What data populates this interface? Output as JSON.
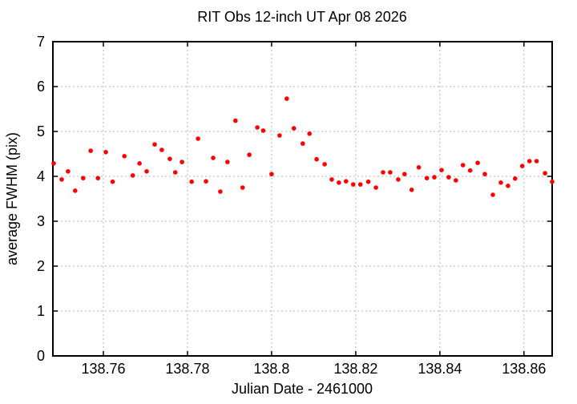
{
  "page": {
    "background": "#ffffff"
  },
  "chart_data": {
    "type": "scatter",
    "title": "RIT Obs 12-inch UT Apr 08 2026",
    "xlabel": "Julian Date - 2461000",
    "ylabel": "average FWHM (pix)",
    "xlim": [
      138.748,
      138.8667
    ],
    "ylim": [
      0,
      7
    ],
    "xticks": [
      138.76,
      138.78,
      138.8,
      138.82,
      138.84,
      138.86
    ],
    "xtick_labels": [
      "138.76",
      "138.78",
      "138.8",
      "138.82",
      "138.84",
      "138.86"
    ],
    "yticks": [
      0,
      1,
      2,
      3,
      4,
      5,
      6,
      7
    ],
    "ytick_labels": [
      "0",
      "1",
      "2",
      "3",
      "4",
      "5",
      "6",
      "7"
    ],
    "grid": true,
    "grid_style": "dotted",
    "legend": "none",
    "axis_color": "#000000",
    "grid_color": "#b5b5b5",
    "marker": {
      "shape": "filled-circle",
      "color": "#ff0000",
      "radius_px": 2.8
    },
    "series": [
      {
        "name": "average FWHM",
        "points": [
          [
            138.7482,
            4.29
          ],
          [
            138.7501,
            3.93
          ],
          [
            138.7516,
            4.11
          ],
          [
            138.7533,
            3.68
          ],
          [
            138.7552,
            3.96
          ],
          [
            138.757,
            4.57
          ],
          [
            138.7587,
            3.96
          ],
          [
            138.7606,
            4.54
          ],
          [
            138.7622,
            3.88
          ],
          [
            138.765,
            4.45
          ],
          [
            138.767,
            4.02
          ],
          [
            138.7686,
            4.29
          ],
          [
            138.7703,
            4.11
          ],
          [
            138.7722,
            4.71
          ],
          [
            138.7739,
            4.59
          ],
          [
            138.7758,
            4.39
          ],
          [
            138.7771,
            4.09
          ],
          [
            138.7787,
            4.32
          ],
          [
            138.781,
            3.88
          ],
          [
            138.7825,
            4.84
          ],
          [
            138.7844,
            3.89
          ],
          [
            138.7861,
            4.41
          ],
          [
            138.7878,
            3.66
          ],
          [
            138.7895,
            4.32
          ],
          [
            138.7914,
            5.24
          ],
          [
            138.7931,
            3.75
          ],
          [
            138.7947,
            4.48
          ],
          [
            138.7966,
            5.09
          ],
          [
            138.798,
            5.02
          ],
          [
            138.8,
            4.05
          ],
          [
            138.8019,
            4.91
          ],
          [
            138.8036,
            5.73
          ],
          [
            138.8053,
            5.07
          ],
          [
            138.8074,
            4.73
          ],
          [
            138.809,
            4.95
          ],
          [
            138.8107,
            4.38
          ],
          [
            138.8126,
            4.27
          ],
          [
            138.8143,
            3.93
          ],
          [
            138.816,
            3.86
          ],
          [
            138.8177,
            3.89
          ],
          [
            138.8194,
            3.82
          ],
          [
            138.8211,
            3.82
          ],
          [
            138.823,
            3.88
          ],
          [
            138.8248,
            3.75
          ],
          [
            138.8265,
            4.09
          ],
          [
            138.8282,
            4.09
          ],
          [
            138.8301,
            3.93
          ],
          [
            138.8316,
            4.05
          ],
          [
            138.8333,
            3.7
          ],
          [
            138.835,
            4.2
          ],
          [
            138.8369,
            3.96
          ],
          [
            138.8387,
            3.98
          ],
          [
            138.8404,
            4.14
          ],
          [
            138.8421,
            3.98
          ],
          [
            138.8438,
            3.91
          ],
          [
            138.8455,
            4.25
          ],
          [
            138.8472,
            4.13
          ],
          [
            138.849,
            4.3
          ],
          [
            138.8507,
            4.05
          ],
          [
            138.8526,
            3.59
          ],
          [
            138.8545,
            3.86
          ],
          [
            138.8562,
            3.79
          ],
          [
            138.8579,
            3.95
          ],
          [
            138.8596,
            4.23
          ],
          [
            138.8613,
            4.34
          ],
          [
            138.863,
            4.34
          ],
          [
            138.865,
            4.07
          ],
          [
            138.8667,
            3.88
          ]
        ]
      }
    ]
  }
}
